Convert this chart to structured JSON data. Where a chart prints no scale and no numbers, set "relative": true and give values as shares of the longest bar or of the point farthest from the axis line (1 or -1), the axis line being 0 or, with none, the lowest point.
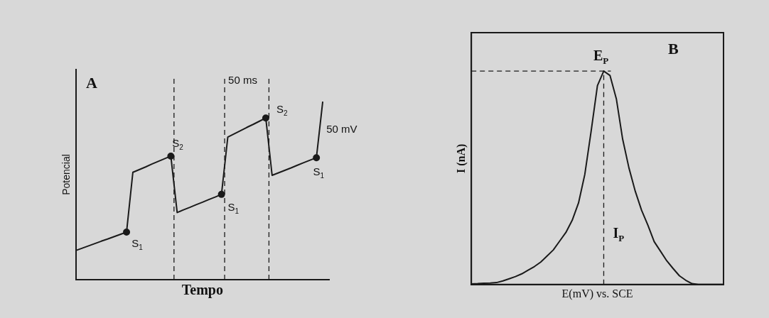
{
  "chart_data": [
    {
      "type": "line",
      "title": "A",
      "xlabel": "Tempo",
      "ylabel": "Potencial",
      "relative": true,
      "tick_labels": false,
      "grid": false,
      "legend": false,
      "categories": [
        null,
        null,
        null,
        null,
        null,
        null,
        null,
        null,
        null,
        null,
        null,
        null,
        null,
        null,
        null,
        null,
        null,
        null,
        null,
        null,
        null,
        null,
        null,
        null,
        null,
        null,
        null,
        null,
        null,
        null,
        null,
        null,
        null,
        null,
        null,
        null,
        null,
        null,
        null,
        null,
        null
      ],
      "series": [
        {
          "type": "line",
          "color": "#1a1a1a",
          "values": [
            0.164,
            0.177,
            0.19,
            0.203,
            0.216,
            0.228,
            0.241,
            0.254,
            0.267,
            0.603,
            0.618,
            0.633,
            0.649,
            0.664,
            0.679,
            0.694,
            0.377,
            0.392,
            0.406,
            0.421,
            0.435,
            0.45,
            0.464,
            0.479,
            0.801,
            0.819,
            0.837,
            0.855,
            0.872,
            0.89,
            0.908,
            0.586,
            0.6,
            0.614,
            0.628,
            0.643,
            0.657,
            0.671,
            0.685,
            1.0,
            null
          ]
        }
      ],
      "annotations": [
        "S$_{1}$",
        "S$_{2}$",
        "S$_{1}$",
        "S$_{2}$",
        "S$_{1}$",
        "50 ms",
        "50 mV"
      ]
    },
    {
      "type": "line",
      "title": "B",
      "xlabel": "E(mV) vs. SCE",
      "ylabel": "I (nA)",
      "relative": true,
      "tick_labels": false,
      "grid": false,
      "legend": false,
      "categories": [
        null,
        null,
        null,
        null,
        null,
        null,
        null,
        null,
        null,
        null,
        null,
        null,
        null,
        null,
        null,
        null,
        null,
        null,
        null,
        null,
        null,
        null,
        null,
        null,
        null,
        null,
        null,
        null,
        null,
        null,
        null,
        null,
        null,
        null,
        null,
        null,
        null,
        null,
        null,
        null,
        null
      ],
      "series": [
        {
          "type": "line",
          "color": "#1a1a1a",
          "marker": "none",
          "values": [
            0.003,
            0.004,
            0.006,
            0.007,
            0.009,
            0.017,
            0.027,
            0.037,
            0.05,
            0.067,
            0.084,
            0.105,
            0.133,
            0.162,
            0.203,
            0.244,
            0.301,
            0.382,
            0.516,
            0.718,
            0.932,
            1,
            0.979,
            0.87,
            0.681,
            0.546,
            0.437,
            0.348,
            0.278,
            0.201,
            0.156,
            0.111,
            0.075,
            0.041,
            0.02,
            0.004,
            0,
            0,
            0,
            0,
            0
          ]
        }
      ],
      "ref_lines": [
        {
          "axis": "y",
          "value": 1,
          "line_style": "dashed"
        }
      ],
      "annotations": [
        "E$_{P}$",
        "I$_{P}$"
      ]
    }
  ]
}
